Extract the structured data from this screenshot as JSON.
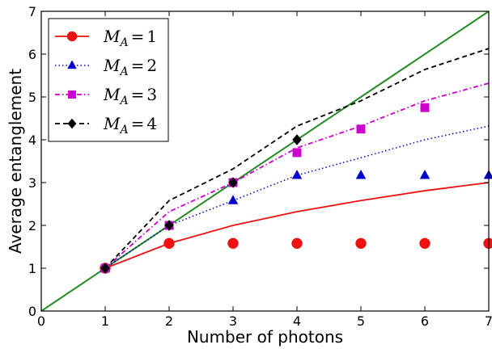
{
  "chart_data": {
    "type": "line",
    "title": "",
    "xlabel": "Number of photons",
    "ylabel": "Average entanglement",
    "xlim": [
      0,
      7
    ],
    "ylim": [
      0,
      7
    ],
    "xticks": [
      "0",
      "1",
      "2",
      "3",
      "4",
      "5",
      "6",
      "7"
    ],
    "yticks": [
      "0",
      "1",
      "2",
      "3",
      "4",
      "5",
      "6",
      "7"
    ],
    "grid": false,
    "legend_position": "top-left",
    "reference_line": {
      "color": "#228b22",
      "x": [
        0,
        7
      ],
      "y": [
        0,
        7
      ]
    },
    "series": [
      {
        "name": "M_A = 1",
        "legend_var": "M",
        "legend_sub": "A",
        "legend_value": "1",
        "color": "#ee1111",
        "marker": "circle",
        "line_style": "solid",
        "line": {
          "x": [
            1,
            2,
            3,
            4,
            5,
            6,
            7
          ],
          "y": [
            1.0,
            1.58,
            2.0,
            2.32,
            2.58,
            2.81,
            3.0
          ]
        },
        "points": {
          "x": [
            1,
            2,
            3,
            4,
            5,
            6,
            7
          ],
          "y": [
            1.0,
            1.58,
            1.58,
            1.58,
            1.58,
            1.58,
            1.58
          ]
        }
      },
      {
        "name": "M_A = 2",
        "legend_var": "M",
        "legend_sub": "A",
        "legend_value": "2",
        "color": "#0000cc",
        "marker": "triangle",
        "line_style": "dotted",
        "line": {
          "x": [
            1,
            2,
            3,
            4,
            5,
            6,
            7
          ],
          "y": [
            1.0,
            2.0,
            2.58,
            3.17,
            3.58,
            4.0,
            4.32
          ]
        },
        "points": {
          "x": [
            1,
            2,
            3,
            4,
            5,
            6,
            7
          ],
          "y": [
            1.0,
            2.0,
            2.58,
            3.17,
            3.17,
            3.17,
            3.17
          ]
        }
      },
      {
        "name": "M_A = 3",
        "legend_var": "M",
        "legend_sub": "A",
        "legend_value": "3",
        "color": "#cc00cc",
        "marker": "square",
        "line_style": "dashdot",
        "line": {
          "x": [
            1,
            2,
            3,
            4,
            5,
            6,
            7
          ],
          "y": [
            1.0,
            2.32,
            3.0,
            3.81,
            4.32,
            4.91,
            5.32
          ]
        },
        "points": {
          "x": [
            1,
            2,
            3,
            4,
            5,
            6
          ],
          "y": [
            1.0,
            2.0,
            3.0,
            3.7,
            4.25,
            4.75
          ]
        }
      },
      {
        "name": "M_A = 4",
        "legend_var": "M",
        "legend_sub": "A",
        "legend_value": "4",
        "color": "#000000",
        "marker": "diamond",
        "line_style": "dashed",
        "line": {
          "x": [
            1,
            2,
            3,
            4,
            5,
            6,
            7
          ],
          "y": [
            1.0,
            2.58,
            3.32,
            4.32,
            4.91,
            5.64,
            6.13
          ]
        },
        "points": {
          "x": [
            1,
            2,
            3,
            4
          ],
          "y": [
            1.0,
            2.0,
            3.0,
            4.0
          ]
        }
      }
    ]
  }
}
